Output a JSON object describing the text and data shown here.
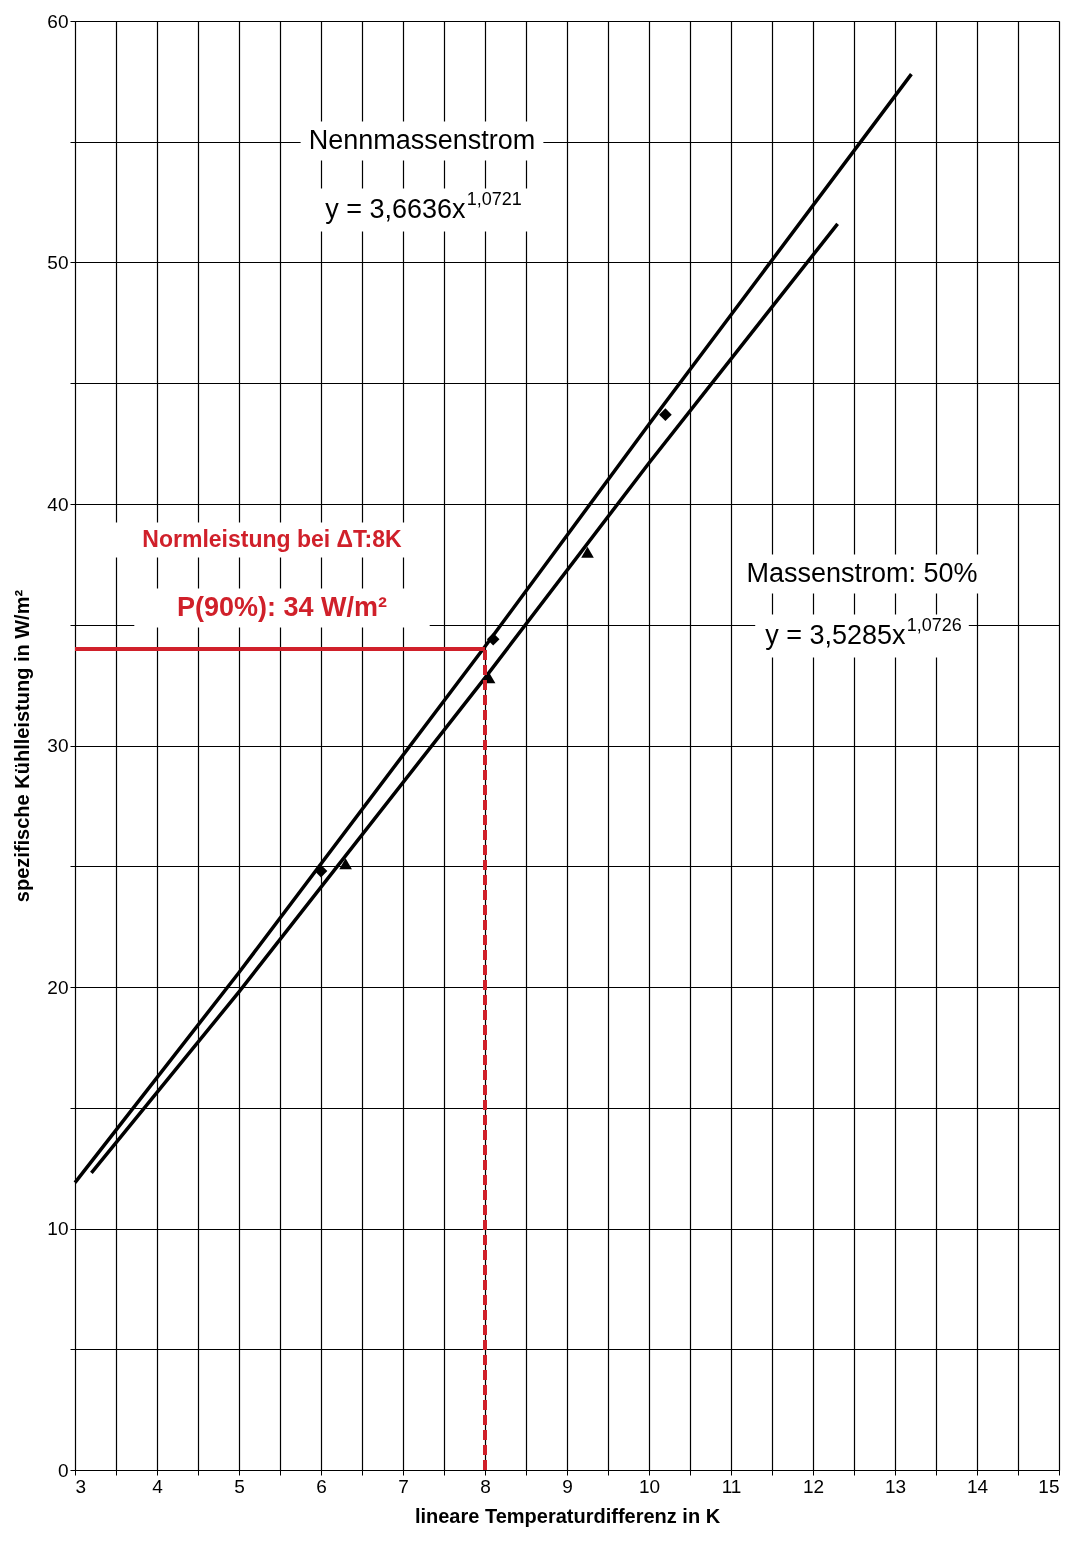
{
  "chart_data": {
    "type": "line",
    "xlabel": "lineare Temperaturdifferenz in K",
    "ylabel": "spezifische Kühlleistung in W/m²",
    "xlim": [
      3,
      15
    ],
    "ylim": [
      0,
      60
    ],
    "xticks": [
      3,
      {
        "value": 3.5,
        "label": null
      },
      4,
      {
        "value": 4.5,
        "label": null
      },
      5,
      {
        "value": 5.5,
        "label": null
      },
      6,
      {
        "value": 6.5,
        "label": null
      },
      7,
      {
        "value": 7.5,
        "label": null
      },
      8,
      {
        "value": 8.5,
        "label": null
      },
      9,
      {
        "value": 9.5,
        "label": null
      },
      10,
      {
        "value": 10.5,
        "label": null
      },
      11,
      {
        "value": 11.5,
        "label": null
      },
      12,
      {
        "value": 12.5,
        "label": null
      },
      13,
      {
        "value": 13.5,
        "label": null
      },
      14,
      {
        "value": 14.5,
        "label": null
      },
      15
    ],
    "yticks": [
      0,
      {
        "value": 5,
        "label": null
      },
      10,
      {
        "value": 15,
        "label": null
      },
      20,
      {
        "value": 25,
        "label": null
      },
      30,
      {
        "value": 35,
        "label": null
      },
      40,
      {
        "value": 45,
        "label": null
      },
      50,
      {
        "value": 55,
        "label": null
      },
      60
    ],
    "grid": true,
    "series": [
      {
        "color": "#000000",
        "x": [
          3,
          5,
          8,
          10,
          13.2
        ],
        "values": [
          11.9,
          20.6,
          34.1,
          43.3,
          57.8
        ]
      },
      {
        "color": "#000000",
        "x": [
          3.2,
          5,
          8,
          10,
          12.3
        ],
        "values": [
          12.3,
          19.8,
          32.8,
          41.7,
          51.6
        ]
      },
      {
        "type": "scatter",
        "color": "#000000",
        "marker": "diamond",
        "x": [
          6,
          8.1,
          10.2
        ],
        "values": [
          24.8,
          34.4,
          43.7
        ]
      },
      {
        "type": "scatter",
        "color": "#000000",
        "marker": "triangle",
        "x": [
          6.3,
          8.05,
          9.25
        ],
        "values": [
          25.1,
          32.8,
          38.0
        ]
      },
      {
        "color": "#d0202a",
        "x": [
          3,
          8
        ],
        "values": [
          34,
          34
        ]
      },
      {
        "color": "#d0202a",
        "line_style": "dashed",
        "x": [
          8,
          8
        ],
        "values": [
          0,
          34
        ]
      }
    ],
    "annotations": [
      "Nennmassenstrom",
      "y = 3,6636x$^{1,0721}$",
      "Massenstrom: 50%",
      "y = 3,5285x$^{1,0726}$",
      "Normleistung bei ΔT:8K",
      "P(90%):   34 W/m²"
    ]
  }
}
